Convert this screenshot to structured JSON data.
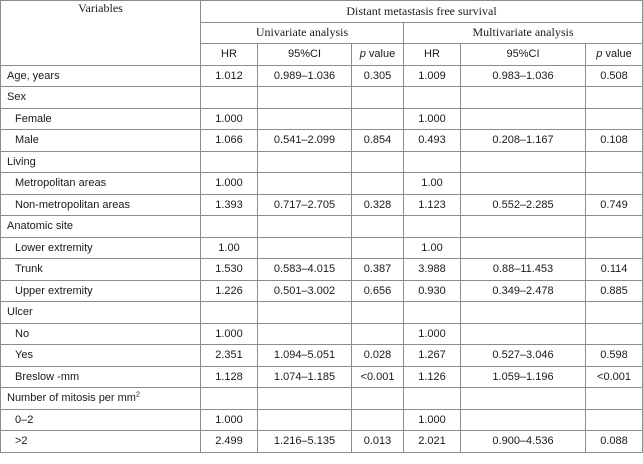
{
  "header": {
    "variables": "Variables",
    "outcome": "Distant metastasis free survival",
    "univariate": "Univariate analysis",
    "multivariate": "Multivariate analysis",
    "col_hr": "HR",
    "col_ci": "95%CI",
    "col_p_italic": "p",
    "col_p_rest": " value"
  },
  "rows": [
    {
      "label": "Age, years",
      "u_hr": "1.012",
      "u_ci": "0.989–1.036",
      "u_p": "0.305",
      "m_hr": "1.009",
      "m_ci": "0.983–1.036",
      "m_p": "0.508"
    },
    {
      "label": "Sex",
      "u_hr": "",
      "u_ci": "",
      "u_p": "",
      "m_hr": "",
      "m_ci": "",
      "m_p": ""
    },
    {
      "label": "Female",
      "u_hr": "1.000",
      "u_ci": "",
      "u_p": "",
      "m_hr": "1.000",
      "m_ci": "",
      "m_p": ""
    },
    {
      "label": "Male",
      "u_hr": "1.066",
      "u_ci": "0.541–2.099",
      "u_p": "0.854",
      "m_hr": "0.493",
      "m_ci": "0.208–1.167",
      "m_p": "0.108"
    },
    {
      "label": "Living",
      "u_hr": "",
      "u_ci": "",
      "u_p": "",
      "m_hr": "",
      "m_ci": "",
      "m_p": ""
    },
    {
      "label": "Metropolitan areas",
      "u_hr": "1.000",
      "u_ci": "",
      "u_p": "",
      "m_hr": "1.00",
      "m_ci": "",
      "m_p": ""
    },
    {
      "label": "Non-metropolitan areas",
      "u_hr": "1.393",
      "u_ci": "0.717–2.705",
      "u_p": "0.328",
      "m_hr": "1.123",
      "m_ci": "0.552–2.285",
      "m_p": "0.749"
    },
    {
      "label": "Anatomic site",
      "u_hr": "",
      "u_ci": "",
      "u_p": "",
      "m_hr": "",
      "m_ci": "",
      "m_p": ""
    },
    {
      "label": "Lower extremity",
      "u_hr": "1.00",
      "u_ci": "",
      "u_p": "",
      "m_hr": "1.00",
      "m_ci": "",
      "m_p": ""
    },
    {
      "label": "Trunk",
      "u_hr": "1.530",
      "u_ci": "0.583–4.015",
      "u_p": "0.387",
      "m_hr": "3.988",
      "m_ci": "0.88–11.453",
      "m_p": "0.114"
    },
    {
      "label": "Upper extremity",
      "u_hr": "1.226",
      "u_ci": "0.501–3.002",
      "u_p": "0.656",
      "m_hr": "0.930",
      "m_ci": "0.349–2.478",
      "m_p": "0.885"
    },
    {
      "label": "Ulcer",
      "u_hr": "",
      "u_ci": "",
      "u_p": "",
      "m_hr": "",
      "m_ci": "",
      "m_p": ""
    },
    {
      "label": "No",
      "u_hr": "1.000",
      "u_ci": "",
      "u_p": "",
      "m_hr": "1.000",
      "m_ci": "",
      "m_p": ""
    },
    {
      "label": "Yes",
      "u_hr": "2.351",
      "u_ci": "1.094–5.051",
      "u_p": "0.028",
      "m_hr": "1.267",
      "m_ci": "0.527–3.046",
      "m_p": "0.598"
    },
    {
      "label": "Breslow -mm",
      "u_hr": "1.128",
      "u_ci": "1.074–1.185",
      "u_p": "<0.001",
      "m_hr": "1.126",
      "m_ci": "1.059–1.196",
      "m_p": "<0.001"
    },
    {
      "label": "Number of mitosis per mm",
      "label_sup": "2",
      "u_hr": "",
      "u_ci": "",
      "u_p": "",
      "m_hr": "",
      "m_ci": "",
      "m_p": ""
    },
    {
      "label": "0–2",
      "u_hr": "1.000",
      "u_ci": "",
      "u_p": "",
      "m_hr": "1.000",
      "m_ci": "",
      "m_p": ""
    },
    {
      "label": ">2",
      "u_hr": "2.499",
      "u_ci": "1.216–5.135",
      "u_p": "0.013",
      "m_hr": "2.021",
      "m_ci": "0.900–4.536",
      "m_p": "0.088"
    }
  ]
}
